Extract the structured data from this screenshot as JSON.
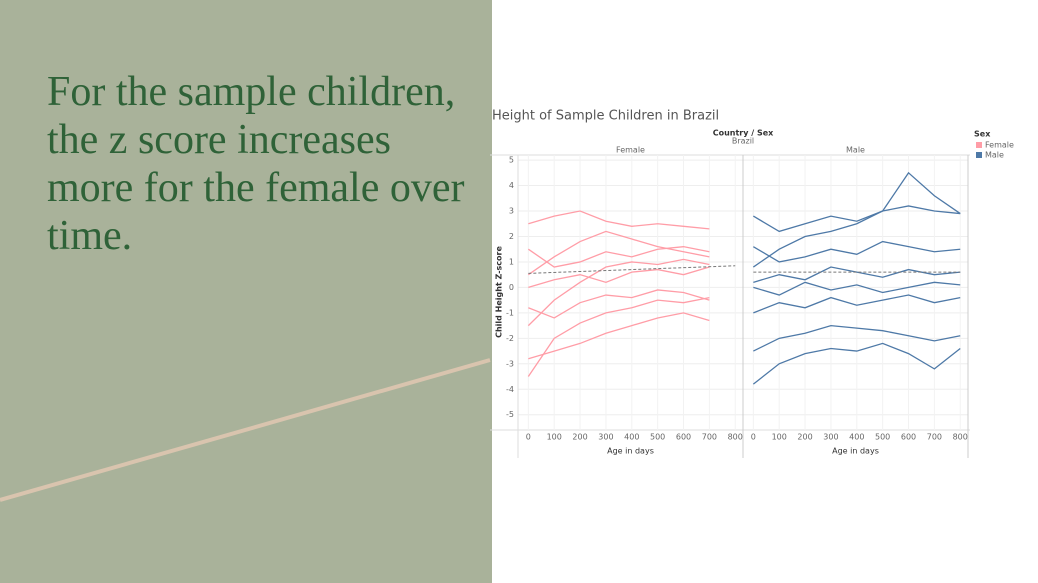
{
  "slide": {
    "text": "For the sample children, the z score increases more for the female over time."
  },
  "chart_data": {
    "type": "line",
    "title": "Height of Sample Children in Brazil",
    "header": "Country / Sex",
    "country": "Brazil",
    "xlabel": "Age in days",
    "ylabel": "Child Height Z-score",
    "xlim": [
      -40,
      830
    ],
    "ylim": [
      -5.6,
      5.2
    ],
    "xticks": [
      0,
      100,
      200,
      300,
      400,
      500,
      600,
      700,
      800
    ],
    "yticks": [
      -5,
      -4,
      -3,
      -2,
      -1,
      0,
      1,
      2,
      3,
      4,
      5
    ],
    "grid": true,
    "legend": {
      "title": "Sex",
      "position": "right"
    },
    "panels": [
      {
        "label": "Female",
        "color": "#ff9da7",
        "x": [
          0,
          100,
          200,
          300,
          400,
          500,
          600,
          700
        ],
        "lines": [
          [
            0.5,
            1.2,
            1.8,
            2.2,
            1.9,
            1.6,
            1.4,
            1.2
          ],
          [
            -1.5,
            -0.5,
            0.2,
            0.8,
            1.0,
            0.9,
            1.1,
            0.9
          ],
          [
            2.5,
            2.8,
            3.0,
            2.6,
            2.4,
            2.5,
            2.4,
            2.3
          ],
          [
            -2.8,
            -2.5,
            -2.2,
            -1.8,
            -1.5,
            -1.2,
            -1.0,
            -1.3
          ],
          [
            0,
            0.3,
            0.5,
            0.2,
            0.6,
            0.7,
            0.5,
            0.8
          ],
          [
            -0.8,
            -1.2,
            -0.6,
            -0.3,
            -0.4,
            -0.1,
            -0.2,
            -0.5
          ],
          [
            1.5,
            0.8,
            1.0,
            1.4,
            1.2,
            1.5,
            1.6,
            1.4
          ],
          [
            -3.5,
            -2.0,
            -1.4,
            -1.0,
            -0.8,
            -0.5,
            -0.6,
            -0.4
          ]
        ],
        "trend_x": [
          0,
          800
        ],
        "trend": [
          0.55,
          0.85
        ]
      },
      {
        "label": "Male",
        "color": "#4e79a7",
        "x": [
          0,
          100,
          200,
          300,
          400,
          500,
          600,
          700,
          800
        ],
        "lines": [
          [
            0.8,
            1.5,
            2.0,
            2.2,
            2.5,
            3.0,
            4.5,
            3.6,
            2.9
          ],
          [
            -2.5,
            -2.0,
            -1.8,
            -1.5,
            -1.6,
            -1.7,
            -1.9,
            -2.1,
            -1.9
          ],
          [
            2.8,
            2.2,
            2.5,
            2.8,
            2.6,
            3.0,
            3.2,
            3.0,
            2.9
          ],
          [
            0.2,
            0.5,
            0.3,
            0.8,
            0.6,
            0.4,
            0.7,
            0.5,
            0.6
          ],
          [
            -1.0,
            -0.6,
            -0.8,
            -0.4,
            -0.7,
            -0.5,
            -0.3,
            -0.6,
            -0.4
          ],
          [
            1.6,
            1.0,
            1.2,
            1.5,
            1.3,
            1.8,
            1.6,
            1.4,
            1.5
          ],
          [
            -3.8,
            -3.0,
            -2.6,
            -2.4,
            -2.5,
            -2.2,
            -2.6,
            -3.2,
            -2.4
          ],
          [
            0,
            -0.3,
            0.2,
            -0.1,
            0.1,
            -0.2,
            0,
            0.2,
            0.1
          ]
        ],
        "trend_x": [
          0,
          800
        ],
        "trend": [
          0.6,
          0.6
        ]
      }
    ]
  }
}
